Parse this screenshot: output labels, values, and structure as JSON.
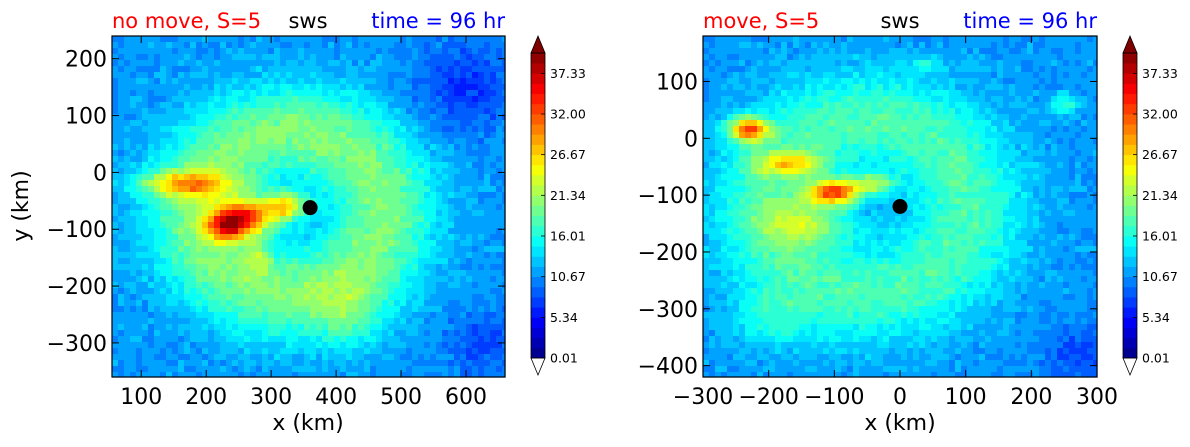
{
  "chart_data": [
    {
      "type": "heatmap",
      "title_left": "no move, S=5",
      "title_center": "sws",
      "title_right": "time = 96 hr",
      "title_left_color": "#ff0000",
      "title_right_color": "#0000ff",
      "xlabel": "x (km)",
      "ylabel": "y (km)",
      "xlim": [
        55,
        660
      ],
      "ylim": [
        -360,
        240
      ],
      "xticks": [
        100,
        200,
        300,
        400,
        500,
        600
      ],
      "yticks": [
        200,
        100,
        0,
        -100,
        -200,
        -300
      ],
      "xtick_labels": [
        "100",
        "200",
        "300",
        "400",
        "500",
        "600"
      ],
      "ytick_labels": [
        "200",
        "100",
        "0",
        "−100",
        "−200",
        "−300"
      ],
      "center_marker": {
        "x": 360,
        "y": -62
      },
      "field": {
        "background": 11,
        "ring": {
          "cx": 330,
          "cy": -70,
          "radius": 140,
          "width": 85,
          "amp": 9
        },
        "spots": [
          {
            "x": 255,
            "y": -80,
            "sx": 45,
            "sy": 30,
            "amp": 19
          },
          {
            "x": 320,
            "y": -60,
            "sx": 35,
            "sy": 25,
            "amp": 14
          },
          {
            "x": 170,
            "y": -20,
            "sx": 70,
            "sy": 22,
            "amp": 12
          },
          {
            "x": 230,
            "y": -100,
            "sx": 30,
            "sy": 25,
            "amp": 10
          },
          {
            "x": 280,
            "y": -150,
            "sx": 20,
            "sy": 30,
            "amp": 5
          },
          {
            "x": 420,
            "y": -250,
            "sx": 60,
            "sy": 60,
            "amp": 4
          },
          {
            "x": 600,
            "y": 150,
            "sx": 80,
            "sy": 80,
            "amp": -4
          },
          {
            "x": 630,
            "y": -300,
            "sx": 60,
            "sy": 60,
            "amp": -3
          }
        ]
      }
    },
    {
      "type": "heatmap",
      "title_left": "move, S=5",
      "title_center": "sws",
      "title_right": "time = 96 hr",
      "title_left_color": "#ff0000",
      "title_right_color": "#0000ff",
      "xlabel": "x (km)",
      "ylabel": "",
      "xlim": [
        -300,
        300
      ],
      "ylim": [
        -420,
        180
      ],
      "xticks": [
        -300,
        -200,
        -100,
        0,
        100,
        200,
        300
      ],
      "yticks": [
        100,
        0,
        -100,
        -200,
        -300,
        -400
      ],
      "xtick_labels": [
        "−300",
        "−200",
        "−100",
        "0",
        "100",
        "200",
        "300"
      ],
      "ytick_labels": [
        "100",
        "0",
        "−100",
        "−200",
        "−300",
        "−400"
      ],
      "center_marker": {
        "x": 0,
        "y": -120
      },
      "field": {
        "background": 11,
        "ring": {
          "cx": -50,
          "cy": -120,
          "radius": 150,
          "width": 90,
          "amp": 7
        },
        "spots": [
          {
            "x": -230,
            "y": 15,
            "sx": 30,
            "sy": 22,
            "amp": 18
          },
          {
            "x": -100,
            "y": -95,
            "sx": 40,
            "sy": 22,
            "amp": 19
          },
          {
            "x": -170,
            "y": -45,
            "sx": 50,
            "sy": 20,
            "amp": 10
          },
          {
            "x": -40,
            "y": -80,
            "sx": 30,
            "sy": 18,
            "amp": 9
          },
          {
            "x": -140,
            "y": -150,
            "sx": 70,
            "sy": 40,
            "amp": 7
          },
          {
            "x": 250,
            "y": 60,
            "sx": 22,
            "sy": 18,
            "amp": 6
          },
          {
            "x": 40,
            "y": 130,
            "sx": 20,
            "sy": 12,
            "amp": 5
          },
          {
            "x": -200,
            "y": -320,
            "sx": 60,
            "sy": 50,
            "amp": 4
          },
          {
            "x": 280,
            "y": -380,
            "sx": 60,
            "sy": 60,
            "amp": -3
          }
        ]
      }
    }
  ],
  "colorbar": {
    "tick_labels": [
      "37.33",
      "32.00",
      "26.67",
      "21.34",
      "16.01",
      "10.67",
      "5.34",
      "0.01"
    ],
    "tick_values": [
      37.33,
      32.0,
      26.67,
      21.34,
      16.01,
      10.67,
      5.34,
      0.01
    ],
    "vmin": 0.01,
    "vmax": 40.0,
    "levels": 30,
    "extend": "both",
    "colormap": "jet"
  }
}
